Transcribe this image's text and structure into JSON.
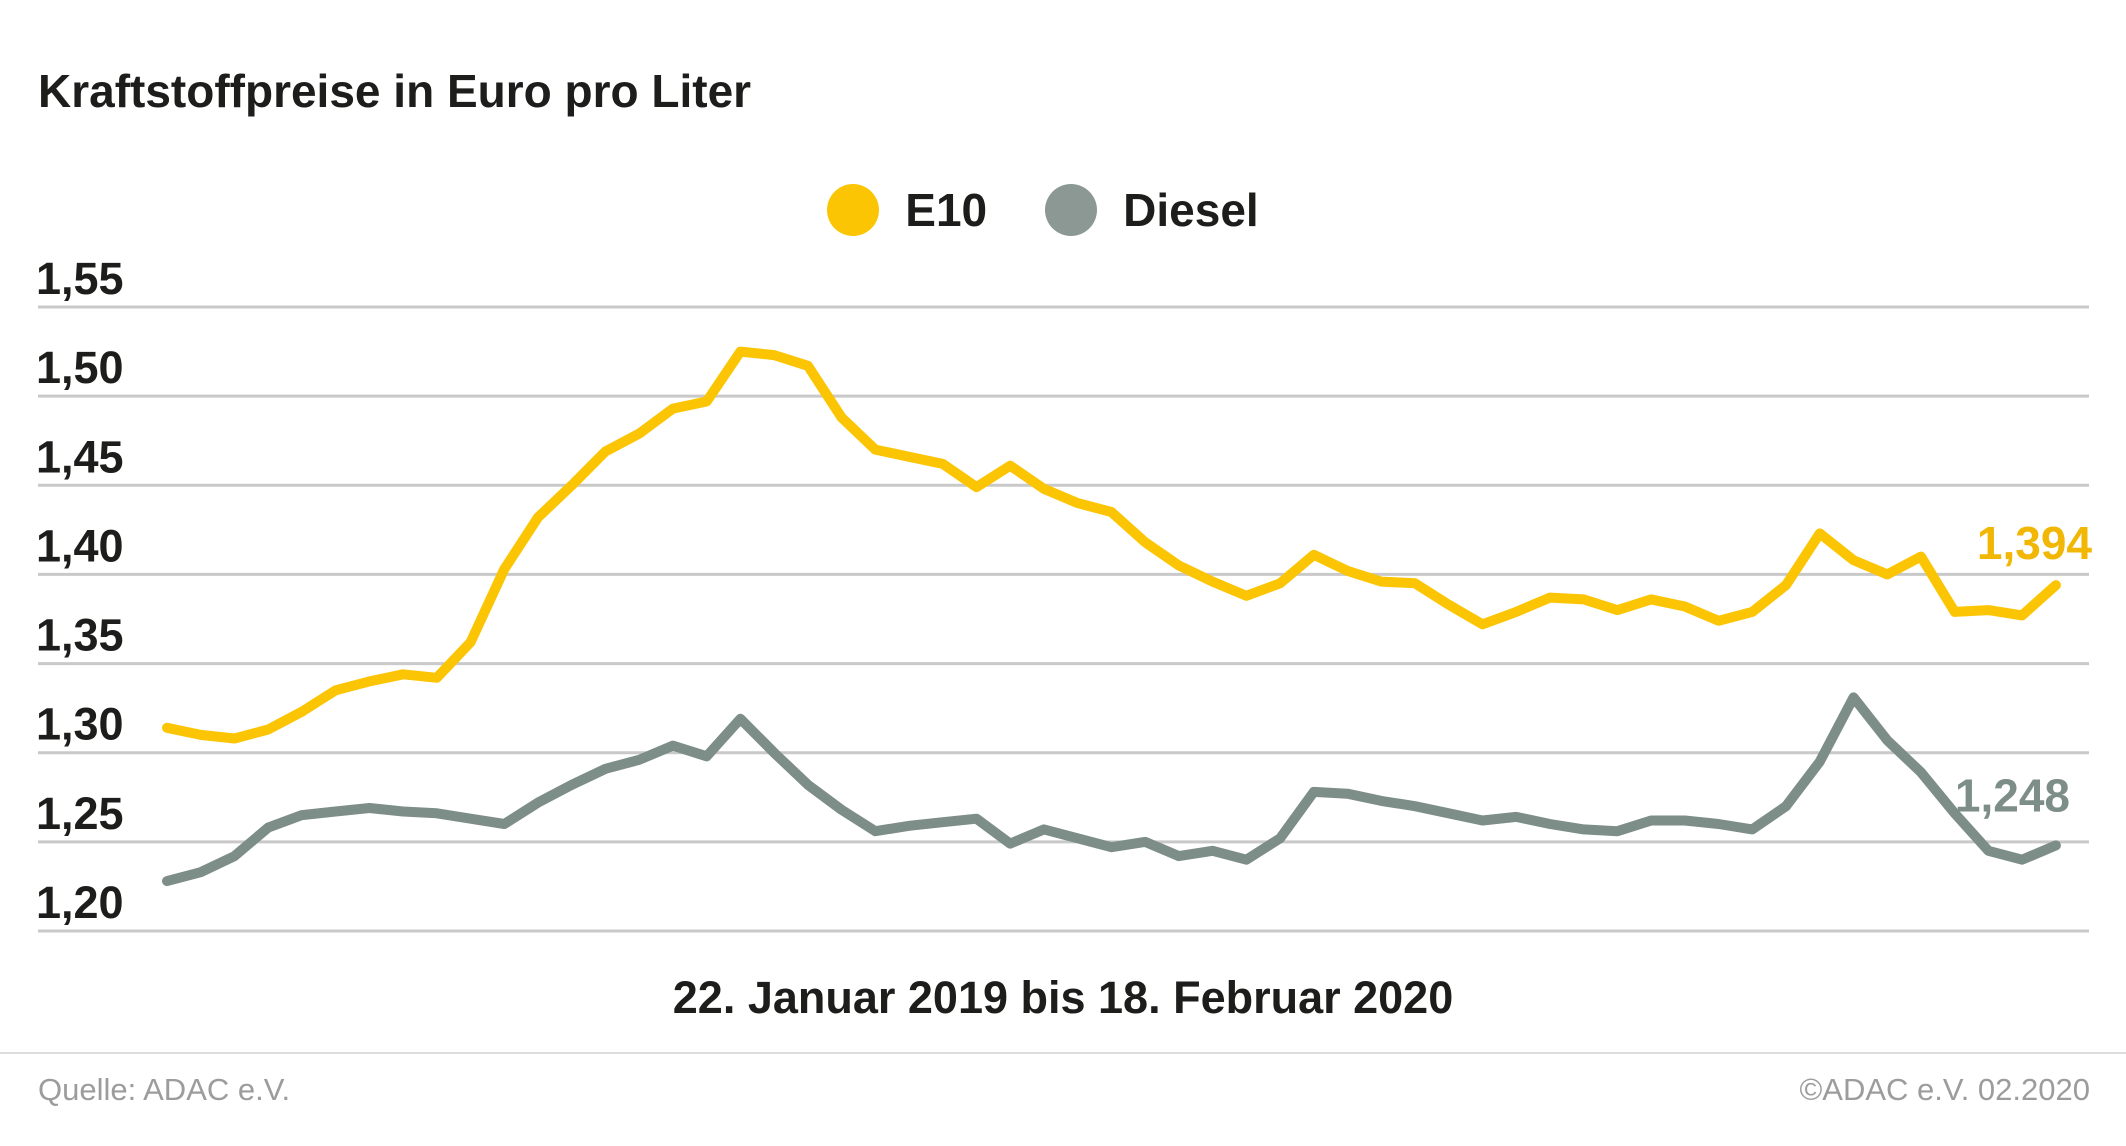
{
  "title": "Kraftstoffpreise in Euro pro Liter",
  "legend": {
    "items": [
      {
        "label": "E10",
        "color": "#fbc504"
      },
      {
        "label": "Diesel",
        "color": "#8c9893"
      }
    ]
  },
  "colors": {
    "e10_line": "#fbc504",
    "e10_label": "#f2b705",
    "diesel_line": "#7d8d88",
    "diesel_label": "#7d8d88",
    "gridline": "#c9c9c9",
    "tick_text": "#1d1d1b"
  },
  "footer": {
    "source": "Quelle: ADAC e.V.",
    "copyright": "©ADAC e.V.  02.2020"
  },
  "chart_data": {
    "type": "line",
    "title": "Kraftstoffpreise in Euro pro Liter",
    "xlabel": "22. Januar 2019 bis 18. Februar 2020",
    "ylabel": "Euro pro Liter",
    "x_description": "57 wöchentliche Werte, 22.01.2019 bis 18.02.2020",
    "ylim": [
      1.2,
      1.55
    ],
    "grid": "horizontal",
    "legend_position": "top-center",
    "y_axis": {
      "tick_values": [
        1.55,
        1.5,
        1.45,
        1.4,
        1.35,
        1.3,
        1.25,
        1.2
      ],
      "tick_labels": [
        "1,55",
        "1,50",
        "1,45",
        "1,40",
        "1,35",
        "1,30",
        "1,25",
        "1,20"
      ]
    },
    "series": [
      {
        "name": "E10",
        "color": "#fbc504",
        "end_label": "1,394",
        "end_label_color": "#f2b705",
        "values": [
          1.314,
          1.31,
          1.308,
          1.313,
          1.323,
          1.335,
          1.34,
          1.344,
          1.342,
          1.362,
          1.403,
          1.432,
          1.45,
          1.469,
          1.479,
          1.493,
          1.497,
          1.525,
          1.523,
          1.517,
          1.488,
          1.47,
          1.466,
          1.462,
          1.449,
          1.461,
          1.448,
          1.44,
          1.435,
          1.418,
          1.405,
          1.396,
          1.388,
          1.395,
          1.411,
          1.402,
          1.396,
          1.395,
          1.383,
          1.372,
          1.379,
          1.387,
          1.386,
          1.38,
          1.386,
          1.382,
          1.374,
          1.379,
          1.394,
          1.423,
          1.408,
          1.4,
          1.41,
          1.379,
          1.38,
          1.377,
          1.394
        ]
      },
      {
        "name": "Diesel",
        "color": "#7d8d88",
        "end_label": "1,248",
        "end_label_color": "#7d8d88",
        "values": [
          1.228,
          1.233,
          1.242,
          1.258,
          1.265,
          1.267,
          1.269,
          1.267,
          1.266,
          1.263,
          1.26,
          1.272,
          1.282,
          1.291,
          1.296,
          1.304,
          1.298,
          1.319,
          1.3,
          1.282,
          1.268,
          1.256,
          1.259,
          1.261,
          1.263,
          1.249,
          1.257,
          1.252,
          1.247,
          1.25,
          1.242,
          1.245,
          1.24,
          1.252,
          1.278,
          1.277,
          1.273,
          1.27,
          1.266,
          1.262,
          1.264,
          1.26,
          1.257,
          1.256,
          1.262,
          1.262,
          1.26,
          1.257,
          1.27,
          1.295,
          1.331,
          1.307,
          1.289,
          1.266,
          1.245,
          1.24,
          1.248
        ]
      }
    ]
  }
}
